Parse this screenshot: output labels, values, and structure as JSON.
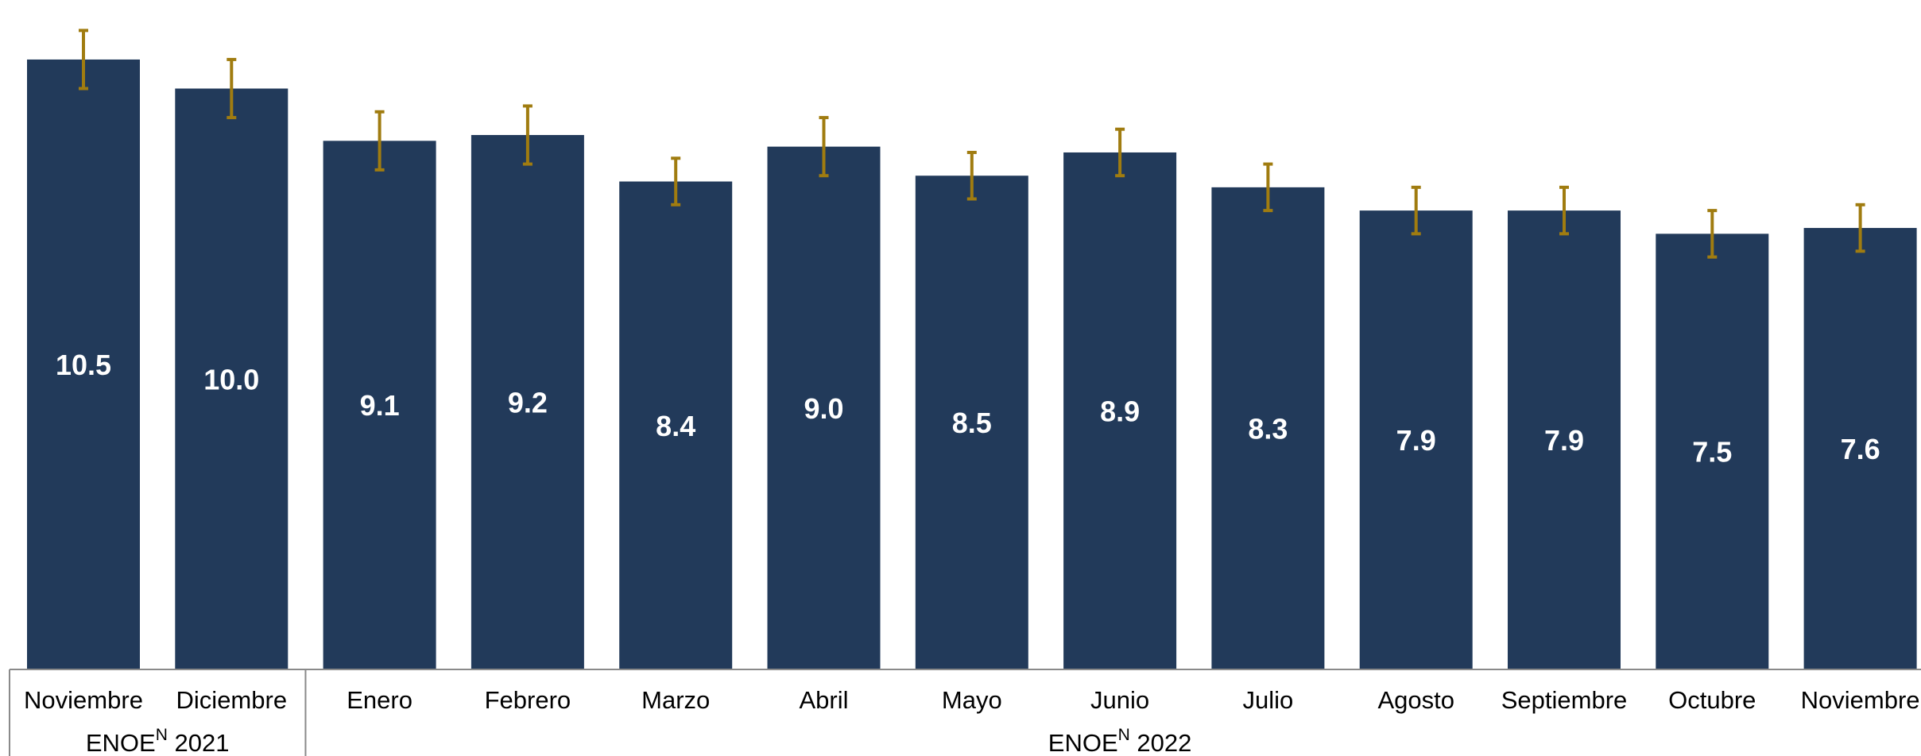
{
  "chart_data": {
    "type": "bar",
    "categories": [
      "Noviembre",
      "Diciembre",
      "Enero",
      "Febrero",
      "Marzo",
      "Abril",
      "Mayo",
      "Junio",
      "Julio",
      "Agosto",
      "Septiembre",
      "Octubre",
      "Noviembre"
    ],
    "values": [
      10.5,
      10.0,
      9.1,
      9.2,
      8.4,
      9.0,
      8.5,
      8.9,
      8.3,
      7.9,
      7.9,
      7.5,
      7.6
    ],
    "value_labels": [
      "10.5",
      "10.0",
      "9.1",
      "9.2",
      "8.4",
      "9.0",
      "8.5",
      "8.9",
      "8.3",
      "7.9",
      "7.9",
      "7.5",
      "7.6"
    ],
    "error_low": [
      10.0,
      9.5,
      8.6,
      8.7,
      8.0,
      8.5,
      8.1,
      8.5,
      7.9,
      7.5,
      7.5,
      7.1,
      7.2
    ],
    "error_high": [
      11.0,
      10.5,
      9.6,
      9.7,
      8.8,
      9.5,
      8.9,
      9.3,
      8.7,
      8.3,
      8.3,
      7.9,
      8.0
    ],
    "groups": [
      {
        "base": "ENOE",
        "sup": "N",
        "year": "2021",
        "start": 0,
        "end": 1
      },
      {
        "base": "ENOE",
        "sup": "N",
        "year": "2022",
        "start": 2,
        "end": 12
      }
    ],
    "title": "",
    "xlabel": "",
    "ylabel": "",
    "ylim": [
      0,
      11.0
    ],
    "grid": false,
    "legend": "none",
    "colors": {
      "bar": "#223a5a",
      "error_bar": "#a07c10",
      "value_label": "#ffffff"
    }
  }
}
